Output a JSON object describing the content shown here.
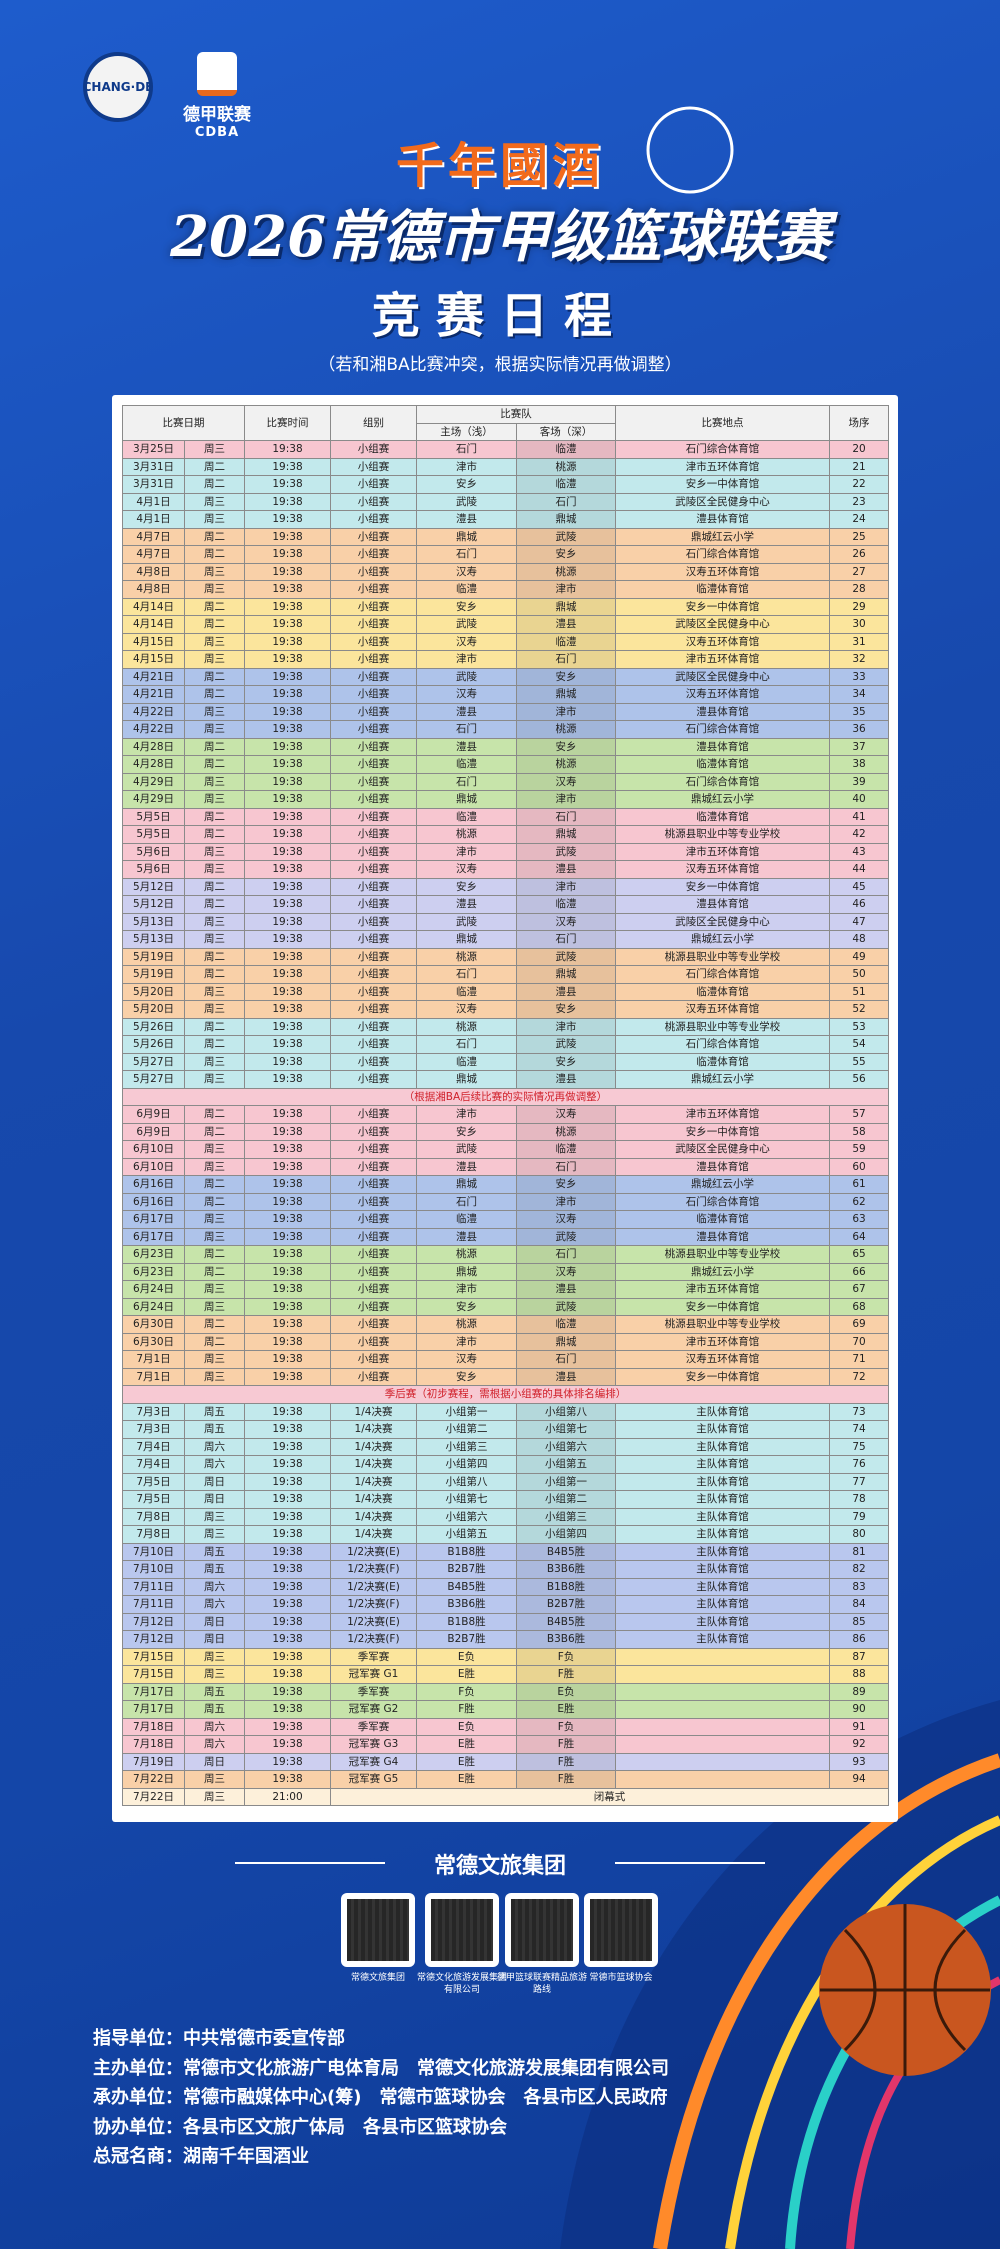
{
  "logos": {
    "left": "CHANG·DE",
    "right_title": "德甲联赛",
    "right_sub": "CDBA"
  },
  "header": {
    "sponsor": "千年國酒",
    "title": "2026常德市甲级篮球联赛",
    "subtitle": "竞赛日程",
    "note": "（若和湘BA比赛冲突，根据实际情况再做调整）"
  },
  "table": {
    "headers": {
      "date": "比赛日期",
      "time": "比赛时间",
      "group": "组别",
      "teams": "比赛队",
      "home": "主场（浅）",
      "away": "客场（深）",
      "venue": "比赛地点",
      "seq": "场序"
    },
    "body": [
      {
        "color": "#f7c6d0",
        "rows": [
          [
            "3月25日",
            "周三",
            "19:38",
            "小组赛",
            "石门",
            "临澧",
            "石门综合体育馆",
            "20"
          ]
        ]
      },
      {
        "color": "#c2e9ec",
        "rows": [
          [
            "3月31日",
            "周二",
            "19:38",
            "小组赛",
            "津市",
            "桃源",
            "津市五环体育馆",
            "21"
          ],
          [
            "3月31日",
            "周二",
            "19:38",
            "小组赛",
            "安乡",
            "临澧",
            "安乡一中体育馆",
            "22"
          ],
          [
            "4月1日",
            "周三",
            "19:38",
            "小组赛",
            "武陵",
            "石门",
            "武陵区全民健身中心",
            "23"
          ],
          [
            "4月1日",
            "周三",
            "19:38",
            "小组赛",
            "澧县",
            "鼎城",
            "澧县体育馆",
            "24"
          ]
        ]
      },
      {
        "color": "#f9d0a8",
        "rows": [
          [
            "4月7日",
            "周二",
            "19:38",
            "小组赛",
            "鼎城",
            "武陵",
            "鼎城红云小学",
            "25"
          ],
          [
            "4月7日",
            "周二",
            "19:38",
            "小组赛",
            "石门",
            "安乡",
            "石门综合体育馆",
            "26"
          ],
          [
            "4月8日",
            "周三",
            "19:38",
            "小组赛",
            "汉寿",
            "桃源",
            "汉寿五环体育馆",
            "27"
          ],
          [
            "4月8日",
            "周三",
            "19:38",
            "小组赛",
            "临澧",
            "津市",
            "临澧体育馆",
            "28"
          ]
        ]
      },
      {
        "color": "#fbe59c",
        "rows": [
          [
            "4月14日",
            "周二",
            "19:38",
            "小组赛",
            "安乡",
            "鼎城",
            "安乡一中体育馆",
            "29"
          ],
          [
            "4月14日",
            "周二",
            "19:38",
            "小组赛",
            "武陵",
            "澧县",
            "武陵区全民健身中心",
            "30"
          ],
          [
            "4月15日",
            "周三",
            "19:38",
            "小组赛",
            "汉寿",
            "临澧",
            "汉寿五环体育馆",
            "31"
          ],
          [
            "4月15日",
            "周三",
            "19:38",
            "小组赛",
            "津市",
            "石门",
            "津市五环体育馆",
            "32"
          ]
        ]
      },
      {
        "color": "#aec3ea",
        "rows": [
          [
            "4月21日",
            "周二",
            "19:38",
            "小组赛",
            "武陵",
            "安乡",
            "武陵区全民健身中心",
            "33"
          ],
          [
            "4月21日",
            "周二",
            "19:38",
            "小组赛",
            "汉寿",
            "鼎城",
            "汉寿五环体育馆",
            "34"
          ],
          [
            "4月22日",
            "周三",
            "19:38",
            "小组赛",
            "澧县",
            "津市",
            "澧县体育馆",
            "35"
          ],
          [
            "4月22日",
            "周三",
            "19:38",
            "小组赛",
            "石门",
            "桃源",
            "石门综合体育馆",
            "36"
          ]
        ]
      },
      {
        "color": "#c7e4aa",
        "rows": [
          [
            "4月28日",
            "周二",
            "19:38",
            "小组赛",
            "澧县",
            "安乡",
            "澧县体育馆",
            "37"
          ],
          [
            "4月28日",
            "周二",
            "19:38",
            "小组赛",
            "临澧",
            "桃源",
            "临澧体育馆",
            "38"
          ],
          [
            "4月29日",
            "周三",
            "19:38",
            "小组赛",
            "石门",
            "汉寿",
            "石门综合体育馆",
            "39"
          ],
          [
            "4月29日",
            "周三",
            "19:38",
            "小组赛",
            "鼎城",
            "津市",
            "鼎城红云小学",
            "40"
          ]
        ]
      },
      {
        "color": "#f7c6d0",
        "rows": [
          [
            "5月5日",
            "周二",
            "19:38",
            "小组赛",
            "临澧",
            "石门",
            "临澧体育馆",
            "41"
          ],
          [
            "5月5日",
            "周二",
            "19:38",
            "小组赛",
            "桃源",
            "鼎城",
            "桃源县职业中等专业学校",
            "42"
          ],
          [
            "5月6日",
            "周三",
            "19:38",
            "小组赛",
            "津市",
            "武陵",
            "津市五环体育馆",
            "43"
          ],
          [
            "5月6日",
            "周三",
            "19:38",
            "小组赛",
            "汉寿",
            "澧县",
            "汉寿五环体育馆",
            "44"
          ]
        ]
      },
      {
        "color": "#cdcff0",
        "rows": [
          [
            "5月12日",
            "周二",
            "19:38",
            "小组赛",
            "安乡",
            "津市",
            "安乡一中体育馆",
            "45"
          ],
          [
            "5月12日",
            "周二",
            "19:38",
            "小组赛",
            "澧县",
            "临澧",
            "澧县体育馆",
            "46"
          ],
          [
            "5月13日",
            "周三",
            "19:38",
            "小组赛",
            "武陵",
            "汉寿",
            "武陵区全民健身中心",
            "47"
          ],
          [
            "5月13日",
            "周三",
            "19:38",
            "小组赛",
            "鼎城",
            "石门",
            "鼎城红云小学",
            "48"
          ]
        ]
      },
      {
        "color": "#f9d0a8",
        "rows": [
          [
            "5月19日",
            "周二",
            "19:38",
            "小组赛",
            "桃源",
            "武陵",
            "桃源县职业中等专业学校",
            "49"
          ],
          [
            "5月19日",
            "周二",
            "19:38",
            "小组赛",
            "石门",
            "鼎城",
            "石门综合体育馆",
            "50"
          ],
          [
            "5月20日",
            "周三",
            "19:38",
            "小组赛",
            "临澧",
            "澧县",
            "临澧体育馆",
            "51"
          ],
          [
            "5月20日",
            "周三",
            "19:38",
            "小组赛",
            "汉寿",
            "安乡",
            "汉寿五环体育馆",
            "52"
          ]
        ]
      },
      {
        "color": "#c2e9ec",
        "rows": [
          [
            "5月26日",
            "周二",
            "19:38",
            "小组赛",
            "桃源",
            "津市",
            "桃源县职业中等专业学校",
            "53"
          ],
          [
            "5月26日",
            "周二",
            "19:38",
            "小组赛",
            "石门",
            "武陵",
            "石门综合体育馆",
            "54"
          ],
          [
            "5月27日",
            "周三",
            "19:38",
            "小组赛",
            "临澧",
            "安乡",
            "临澧体育馆",
            "55"
          ],
          [
            "5月27日",
            "周三",
            "19:38",
            "小组赛",
            "鼎城",
            "澧县",
            "鼎城红云小学",
            "56"
          ]
        ]
      },
      {
        "note": "（根据湘BA后续比赛的实际情况再做调整）"
      },
      {
        "color": "#f7c6d0",
        "rows": [
          [
            "6月9日",
            "周二",
            "19:38",
            "小组赛",
            "津市",
            "汉寿",
            "津市五环体育馆",
            "57"
          ],
          [
            "6月9日",
            "周二",
            "19:38",
            "小组赛",
            "安乡",
            "桃源",
            "安乡一中体育馆",
            "58"
          ],
          [
            "6月10日",
            "周三",
            "19:38",
            "小组赛",
            "武陵",
            "临澧",
            "武陵区全民健身中心",
            "59"
          ],
          [
            "6月10日",
            "周三",
            "19:38",
            "小组赛",
            "澧县",
            "石门",
            "澧县体育馆",
            "60"
          ]
        ]
      },
      {
        "color": "#aec3ea",
        "rows": [
          [
            "6月16日",
            "周二",
            "19:38",
            "小组赛",
            "鼎城",
            "安乡",
            "鼎城红云小学",
            "61"
          ],
          [
            "6月16日",
            "周二",
            "19:38",
            "小组赛",
            "石门",
            "津市",
            "石门综合体育馆",
            "62"
          ],
          [
            "6月17日",
            "周三",
            "19:38",
            "小组赛",
            "临澧",
            "汉寿",
            "临澧体育馆",
            "63"
          ],
          [
            "6月17日",
            "周三",
            "19:38",
            "小组赛",
            "澧县",
            "武陵",
            "澧县体育馆",
            "64"
          ]
        ]
      },
      {
        "color": "#c7e4aa",
        "rows": [
          [
            "6月23日",
            "周二",
            "19:38",
            "小组赛",
            "桃源",
            "石门",
            "桃源县职业中等专业学校",
            "65"
          ],
          [
            "6月23日",
            "周二",
            "19:38",
            "小组赛",
            "鼎城",
            "汉寿",
            "鼎城红云小学",
            "66"
          ],
          [
            "6月24日",
            "周三",
            "19:38",
            "小组赛",
            "津市",
            "澧县",
            "津市五环体育馆",
            "67"
          ],
          [
            "6月24日",
            "周三",
            "19:38",
            "小组赛",
            "安乡",
            "武陵",
            "安乡一中体育馆",
            "68"
          ]
        ]
      },
      {
        "color": "#f9d0a8",
        "rows": [
          [
            "6月30日",
            "周二",
            "19:38",
            "小组赛",
            "桃源",
            "临澧",
            "桃源县职业中等专业学校",
            "69"
          ],
          [
            "6月30日",
            "周二",
            "19:38",
            "小组赛",
            "津市",
            "鼎城",
            "津市五环体育馆",
            "70"
          ],
          [
            "7月1日",
            "周三",
            "19:38",
            "小组赛",
            "汉寿",
            "石门",
            "汉寿五环体育馆",
            "71"
          ],
          [
            "7月1日",
            "周三",
            "19:38",
            "小组赛",
            "安乡",
            "澧县",
            "安乡一中体育馆",
            "72"
          ]
        ]
      },
      {
        "note": "季后赛（初步赛程，需根据小组赛的具体排名编排）"
      },
      {
        "color": "#c2e9ec",
        "rows": [
          [
            "7月3日",
            "周五",
            "19:38",
            "1/4决赛",
            "小组第一",
            "小组第八",
            "主队体育馆",
            "73"
          ],
          [
            "7月3日",
            "周五",
            "19:38",
            "1/4决赛",
            "小组第二",
            "小组第七",
            "主队体育馆",
            "74"
          ],
          [
            "7月4日",
            "周六",
            "19:38",
            "1/4决赛",
            "小组第三",
            "小组第六",
            "主队体育馆",
            "75"
          ],
          [
            "7月4日",
            "周六",
            "19:38",
            "1/4决赛",
            "小组第四",
            "小组第五",
            "主队体育馆",
            "76"
          ],
          [
            "7月5日",
            "周日",
            "19:38",
            "1/4决赛",
            "小组第八",
            "小组第一",
            "主队体育馆",
            "77"
          ],
          [
            "7月5日",
            "周日",
            "19:38",
            "1/4决赛",
            "小组第七",
            "小组第二",
            "主队体育馆",
            "78"
          ],
          [
            "7月8日",
            "周三",
            "19:38",
            "1/4决赛",
            "小组第六",
            "小组第三",
            "主队体育馆",
            "79"
          ],
          [
            "7月8日",
            "周三",
            "19:38",
            "1/4决赛",
            "小组第五",
            "小组第四",
            "主队体育馆",
            "80"
          ]
        ]
      },
      {
        "color": "#b9c7ee",
        "rows": [
          [
            "7月10日",
            "周五",
            "19:38",
            "1/2决赛(E)",
            "B1B8胜",
            "B4B5胜",
            "主队体育馆",
            "81"
          ],
          [
            "7月10日",
            "周五",
            "19:38",
            "1/2决赛(F)",
            "B2B7胜",
            "B3B6胜",
            "主队体育馆",
            "82"
          ],
          [
            "7月11日",
            "周六",
            "19:38",
            "1/2决赛(E)",
            "B4B5胜",
            "B1B8胜",
            "主队体育馆",
            "83"
          ],
          [
            "7月11日",
            "周六",
            "19:38",
            "1/2决赛(F)",
            "B3B6胜",
            "B2B7胜",
            "主队体育馆",
            "84"
          ],
          [
            "7月12日",
            "周日",
            "19:38",
            "1/2决赛(E)",
            "B1B8胜",
            "B4B5胜",
            "主队体育馆",
            "85"
          ],
          [
            "7月12日",
            "周日",
            "19:38",
            "1/2决赛(F)",
            "B2B7胜",
            "B3B6胜",
            "主队体育馆",
            "86"
          ]
        ]
      },
      {
        "color": "#fbe59c",
        "rows": [
          [
            "7月15日",
            "周三",
            "19:38",
            "季军赛",
            "E负",
            "F负",
            "",
            "87"
          ],
          [
            "7月15日",
            "周三",
            "19:38",
            "冠军赛 G1",
            "E胜",
            "F胜",
            "",
            "88"
          ]
        ]
      },
      {
        "color": "#c7e4aa",
        "rows": [
          [
            "7月17日",
            "周五",
            "19:38",
            "季军赛",
            "F负",
            "E负",
            "",
            "89"
          ],
          [
            "7月17日",
            "周五",
            "19:38",
            "冠军赛 G2",
            "F胜",
            "E胜",
            "",
            "90"
          ]
        ]
      },
      {
        "color": "#f7c6d0",
        "rows": [
          [
            "7月18日",
            "周六",
            "19:38",
            "季军赛",
            "E负",
            "F负",
            "",
            "91"
          ],
          [
            "7月18日",
            "周六",
            "19:38",
            "冠军赛 G3",
            "E胜",
            "F胜",
            "",
            "92"
          ]
        ]
      },
      {
        "color": "#cdcff0",
        "rows": [
          [
            "7月19日",
            "周日",
            "19:38",
            "冠军赛 G4",
            "E胜",
            "F胜",
            "",
            "93"
          ]
        ]
      },
      {
        "color": "#f9d0a8",
        "rows": [
          [
            "7月22日",
            "周三",
            "19:38",
            "冠军赛 G5",
            "E胜",
            "F胜",
            "",
            "94"
          ]
        ]
      },
      {
        "color": "#fdf0da",
        "rows": [
          [
            "7月22日",
            "周三",
            "21:00",
            "闭幕式"
          ]
        ]
      }
    ]
  },
  "footer": {
    "brand": "常德文旅集团",
    "qrcodes": [
      "常德文旅集团",
      "常德文化旅游发展集团有限公司",
      "德甲篮球联赛精品旅游路线",
      "常德市篮球协会"
    ],
    "credits": [
      [
        "指导单位：",
        "中共常德市委宣传部"
      ],
      [
        "主办单位：",
        "常德市文化旅游广电体育局　常德文化旅游发展集团有限公司"
      ],
      [
        "承办单位：",
        "常德市融媒体中心(筹)　常德市篮球协会　各县市区人民政府"
      ],
      [
        "协办单位：",
        "各县市区文旅广体局　各县市区篮球协会"
      ],
      [
        "总冠名商：",
        "湖南千年国酒业"
      ]
    ]
  }
}
